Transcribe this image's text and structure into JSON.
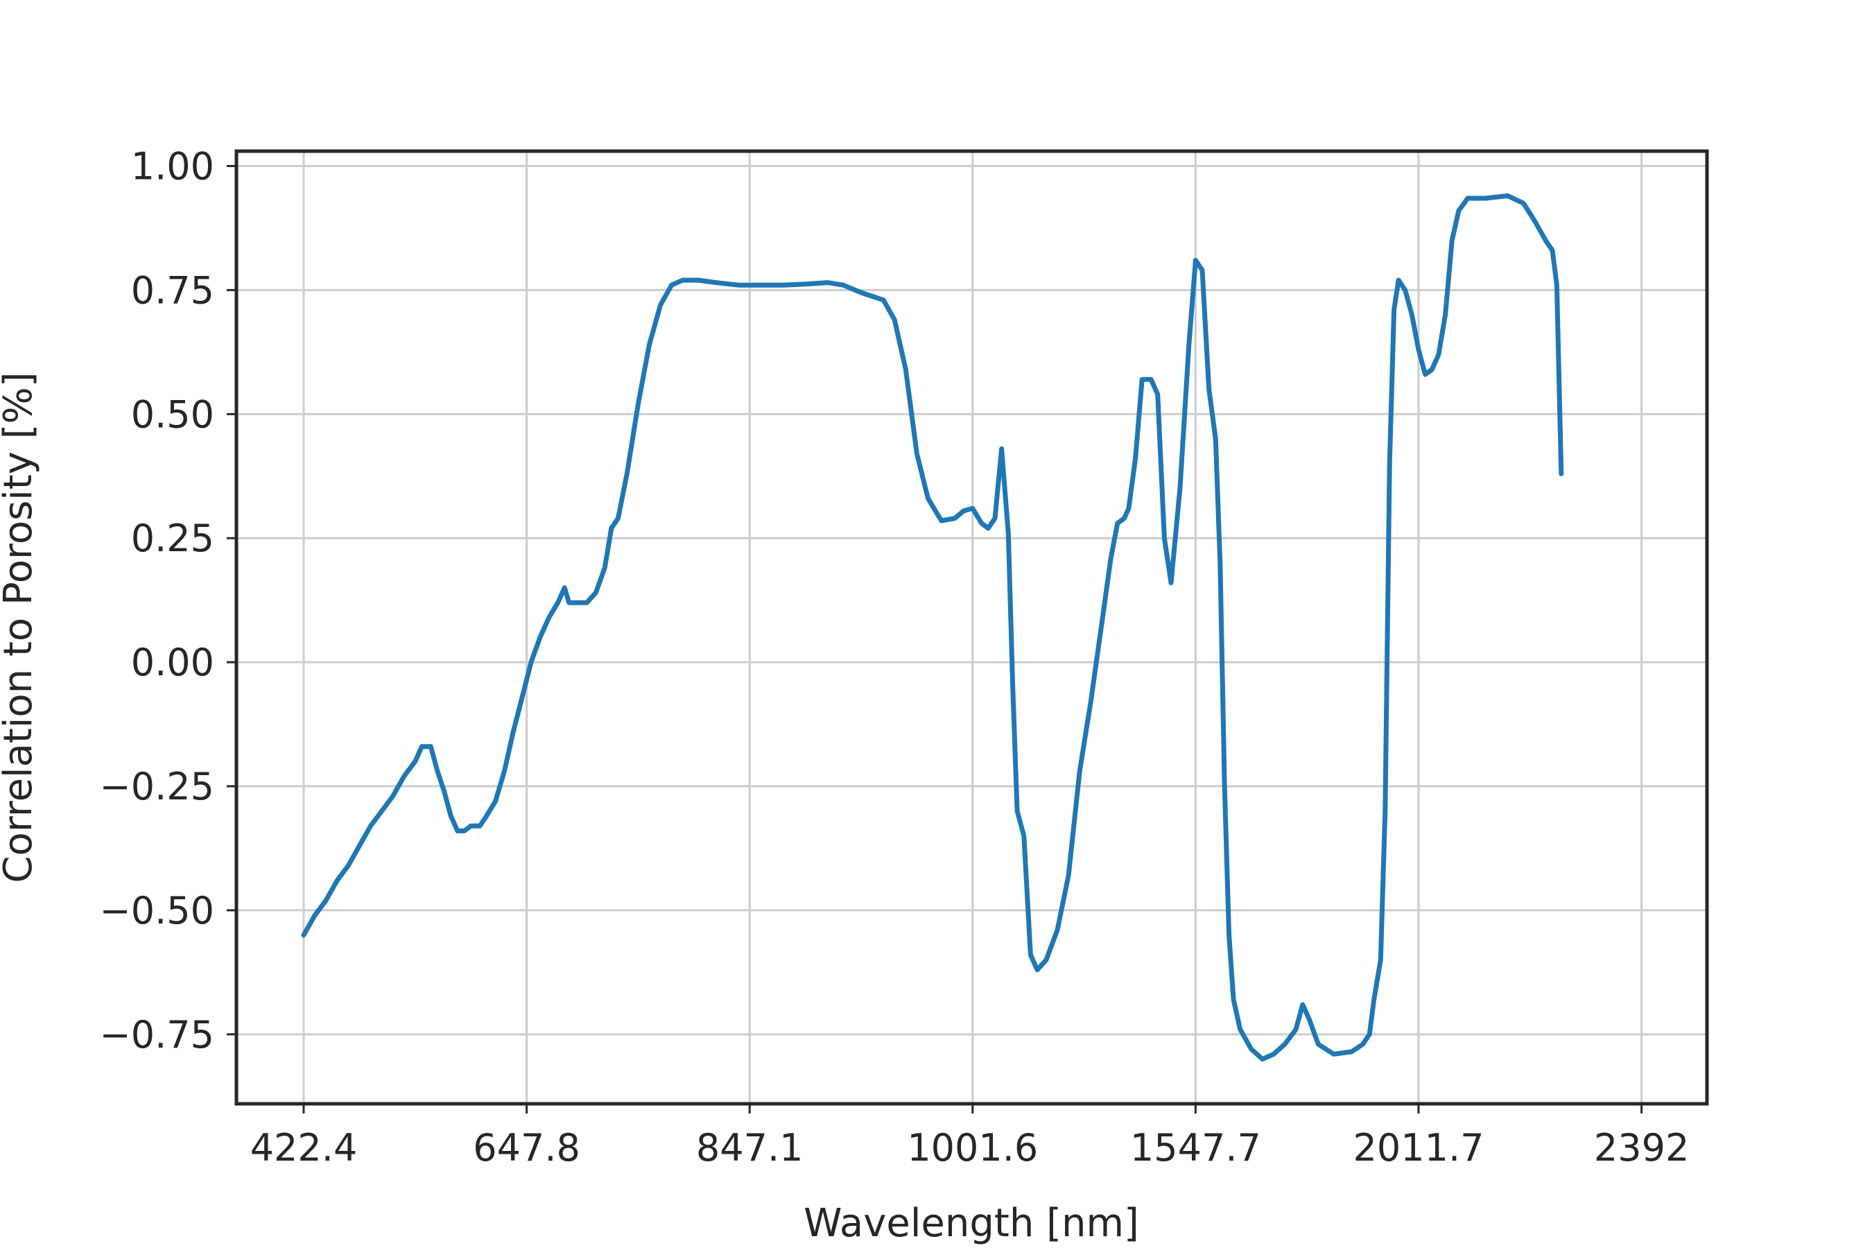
{
  "chart_data": {
    "type": "line",
    "title": "",
    "xlabel": "Wavelength [nm]",
    "ylabel": "Correlation to Porosity [%]",
    "x_tick_labels": [
      "422.4",
      "647.8",
      "847.1",
      "1001.6",
      "1547.7",
      "2011.7",
      "2392"
    ],
    "y_ticks": [
      -0.75,
      -0.5,
      -0.25,
      0.0,
      0.25,
      0.5,
      0.75,
      1.0
    ],
    "y_tick_labels": [
      "−0.75",
      "−0.50",
      "−0.25",
      "0.00",
      "0.25",
      "0.50",
      "0.75",
      "1.00"
    ],
    "ylim": [
      -0.89,
      1.03
    ],
    "grid": true,
    "color": "#1f77b4",
    "series": [
      {
        "points_tick_index": [
          [
            0.0,
            -0.55
          ],
          [
            0.05,
            -0.51
          ],
          [
            0.1,
            -0.48
          ],
          [
            0.15,
            -0.44
          ],
          [
            0.2,
            -0.41
          ],
          [
            0.25,
            -0.37
          ],
          [
            0.3,
            -0.33
          ],
          [
            0.35,
            -0.3
          ],
          [
            0.4,
            -0.27
          ],
          [
            0.45,
            -0.23
          ],
          [
            0.5,
            -0.2
          ],
          [
            0.53,
            -0.17
          ],
          [
            0.57,
            -0.17
          ],
          [
            0.6,
            -0.22
          ],
          [
            0.63,
            -0.26
          ],
          [
            0.66,
            -0.31
          ],
          [
            0.69,
            -0.34
          ],
          [
            0.72,
            -0.34
          ],
          [
            0.75,
            -0.33
          ],
          [
            0.79,
            -0.33
          ],
          [
            0.82,
            -0.31
          ],
          [
            0.86,
            -0.28
          ],
          [
            0.9,
            -0.22
          ],
          [
            0.94,
            -0.14
          ],
          [
            0.98,
            -0.07
          ],
          [
            1.02,
            0.0
          ],
          [
            1.06,
            0.05
          ],
          [
            1.1,
            0.09
          ],
          [
            1.14,
            0.12
          ],
          [
            1.17,
            0.15
          ],
          [
            1.19,
            0.12
          ],
          [
            1.23,
            0.12
          ],
          [
            1.27,
            0.12
          ],
          [
            1.31,
            0.14
          ],
          [
            1.35,
            0.19
          ],
          [
            1.38,
            0.27
          ],
          [
            1.41,
            0.29
          ],
          [
            1.45,
            0.38
          ],
          [
            1.5,
            0.52
          ],
          [
            1.55,
            0.64
          ],
          [
            1.6,
            0.72
          ],
          [
            1.65,
            0.76
          ],
          [
            1.7,
            0.77
          ],
          [
            1.77,
            0.77
          ],
          [
            1.85,
            0.765
          ],
          [
            1.95,
            0.76
          ],
          [
            2.05,
            0.76
          ],
          [
            2.15,
            0.76
          ],
          [
            2.25,
            0.762
          ],
          [
            2.35,
            0.765
          ],
          [
            2.42,
            0.76
          ],
          [
            2.5,
            0.745
          ],
          [
            2.6,
            0.73
          ],
          [
            2.65,
            0.69
          ],
          [
            2.7,
            0.59
          ],
          [
            2.75,
            0.42
          ],
          [
            2.8,
            0.33
          ],
          [
            2.86,
            0.285
          ],
          [
            2.92,
            0.29
          ],
          [
            2.96,
            0.305
          ],
          [
            3.0,
            0.31
          ],
          [
            3.04,
            0.28
          ],
          [
            3.07,
            0.27
          ],
          [
            3.1,
            0.29
          ],
          [
            3.13,
            0.43
          ],
          [
            3.16,
            0.26
          ],
          [
            3.18,
            -0.05
          ],
          [
            3.2,
            -0.3
          ],
          [
            3.23,
            -0.35
          ],
          [
            3.26,
            -0.59
          ],
          [
            3.29,
            -0.62
          ],
          [
            3.33,
            -0.6
          ],
          [
            3.38,
            -0.54
          ],
          [
            3.43,
            -0.43
          ],
          [
            3.48,
            -0.22
          ],
          [
            3.53,
            -0.08
          ],
          [
            3.58,
            0.08
          ],
          [
            3.62,
            0.21
          ],
          [
            3.65,
            0.28
          ],
          [
            3.68,
            0.29
          ],
          [
            3.7,
            0.31
          ],
          [
            3.73,
            0.41
          ],
          [
            3.76,
            0.57
          ],
          [
            3.8,
            0.57
          ],
          [
            3.83,
            0.54
          ],
          [
            3.86,
            0.25
          ],
          [
            3.89,
            0.16
          ],
          [
            3.93,
            0.35
          ],
          [
            3.97,
            0.64
          ],
          [
            4.0,
            0.81
          ],
          [
            4.03,
            0.79
          ],
          [
            4.06,
            0.55
          ],
          [
            4.09,
            0.45
          ],
          [
            4.11,
            0.2
          ],
          [
            4.13,
            -0.25
          ],
          [
            4.15,
            -0.55
          ],
          [
            4.17,
            -0.68
          ],
          [
            4.2,
            -0.74
          ],
          [
            4.25,
            -0.78
          ],
          [
            4.3,
            -0.8
          ],
          [
            4.35,
            -0.79
          ],
          [
            4.4,
            -0.77
          ],
          [
            4.45,
            -0.74
          ],
          [
            4.48,
            -0.69
          ],
          [
            4.51,
            -0.72
          ],
          [
            4.55,
            -0.77
          ],
          [
            4.62,
            -0.79
          ],
          [
            4.7,
            -0.785
          ],
          [
            4.75,
            -0.77
          ],
          [
            4.78,
            -0.75
          ],
          [
            4.8,
            -0.68
          ],
          [
            4.83,
            -0.6
          ],
          [
            4.85,
            -0.3
          ],
          [
            4.87,
            0.4
          ],
          [
            4.89,
            0.71
          ],
          [
            4.91,
            0.77
          ],
          [
            4.94,
            0.75
          ],
          [
            4.97,
            0.7
          ],
          [
            5.0,
            0.63
          ],
          [
            5.03,
            0.58
          ],
          [
            5.06,
            0.59
          ],
          [
            5.09,
            0.62
          ],
          [
            5.12,
            0.7
          ],
          [
            5.15,
            0.85
          ],
          [
            5.18,
            0.91
          ],
          [
            5.22,
            0.935
          ],
          [
            5.3,
            0.935
          ],
          [
            5.4,
            0.94
          ],
          [
            5.47,
            0.925
          ],
          [
            5.52,
            0.89
          ],
          [
            5.57,
            0.85
          ],
          [
            5.6,
            0.83
          ],
          [
            5.62,
            0.76
          ],
          [
            5.64,
            0.38
          ]
        ]
      }
    ]
  }
}
